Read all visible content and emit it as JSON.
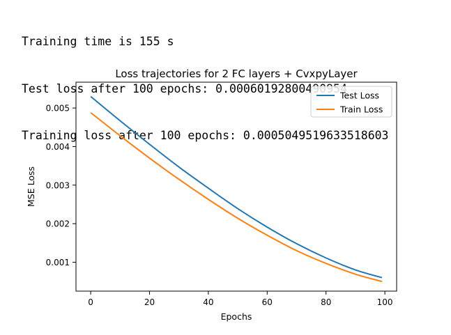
{
  "console": {
    "lines": [
      "Training time is 155 s",
      "Test loss after 100 epochs: 0.00060192800490954",
      "Training loss after 100 epochs: 0.0005049519633518603"
    ]
  },
  "chart_data": {
    "type": "line",
    "title": "Loss trajectories for 2 FC layers + CvxpyLayer",
    "xlabel": "Epochs",
    "ylabel": "MSE Loss",
    "xlim": [
      -5,
      104
    ],
    "ylim": [
      0.00025,
      0.00567
    ],
    "xticks": [
      0,
      20,
      40,
      60,
      80,
      100
    ],
    "xtick_labels": [
      "0",
      "20",
      "40",
      "60",
      "80",
      "100"
    ],
    "yticks": [
      0.001,
      0.002,
      0.003,
      0.004,
      0.005
    ],
    "ytick_labels": [
      "0.001",
      "0.002",
      "0.003",
      "0.004",
      "0.005"
    ],
    "grid": false,
    "legend_position": "top-right",
    "series": [
      {
        "name": "Test Loss",
        "color": "#1f77b4",
        "x": [
          0,
          10,
          20,
          30,
          40,
          50,
          60,
          70,
          80,
          90,
          99
        ],
        "y": [
          0.0053,
          0.00467,
          0.00406,
          0.00347,
          0.00292,
          0.00239,
          0.00191,
          0.00148,
          0.00111,
          0.0008,
          0.0006
        ]
      },
      {
        "name": "Train Loss",
        "color": "#ff7f0e",
        "x": [
          0,
          10,
          20,
          30,
          40,
          50,
          60,
          70,
          80,
          90,
          99
        ],
        "y": [
          0.00488,
          0.00428,
          0.0037,
          0.00315,
          0.00263,
          0.00214,
          0.0017,
          0.0013,
          0.00097,
          0.00069,
          0.0005
        ]
      }
    ]
  }
}
